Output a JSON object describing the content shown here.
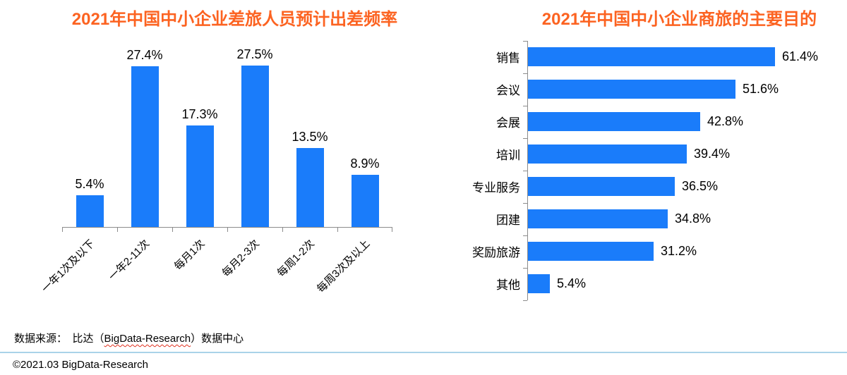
{
  "chart_data": [
    {
      "type": "bar",
      "orientation": "vertical",
      "title": "2021年中国中小企业差旅人员预计出差频率",
      "categories": [
        "一年1次及以下",
        "一年2-11次",
        "每月1次",
        "每月2-3次",
        "每周1-2次",
        "每周3次及以上"
      ],
      "values": [
        5.4,
        27.4,
        17.3,
        27.5,
        13.5,
        8.9
      ],
      "value_labels": [
        "5.4%",
        "27.4%",
        "17.3%",
        "27.5%",
        "13.5%",
        "8.9%"
      ],
      "ylim": [
        0,
        30
      ],
      "grid": false,
      "legend": "none",
      "category_label_rotation_deg": -45
    },
    {
      "type": "bar",
      "orientation": "horizontal",
      "title": "2021年中国中小企业商旅的主要目的",
      "categories": [
        "销售",
        "会议",
        "会展",
        "培训",
        "专业服务",
        "团建",
        "奖励旅游",
        "其他"
      ],
      "values": [
        61.4,
        51.6,
        42.8,
        39.4,
        36.5,
        34.8,
        31.2,
        5.4
      ],
      "value_labels": [
        "61.4%",
        "51.6%",
        "42.8%",
        "39.4%",
        "36.5%",
        "34.8%",
        "31.2%",
        "5.4%"
      ],
      "xlim": [
        0,
        70
      ],
      "grid": false,
      "legend": "none",
      "value_label_position": "right-of-bar"
    }
  ],
  "colors": {
    "bar_fill": "#1A7CFA",
    "title": "#FC6321",
    "axis": "#8C8C8C",
    "value_label": "#000000",
    "divider": "#A9D3E8",
    "spellcheck_underline": "#E0301E"
  },
  "footer": {
    "source_prefix": "数据来源：　比达（",
    "source_brand": "BigData-Research",
    "source_suffix": "）数据中心",
    "copyright": "©2021.03 BigData-Research"
  }
}
